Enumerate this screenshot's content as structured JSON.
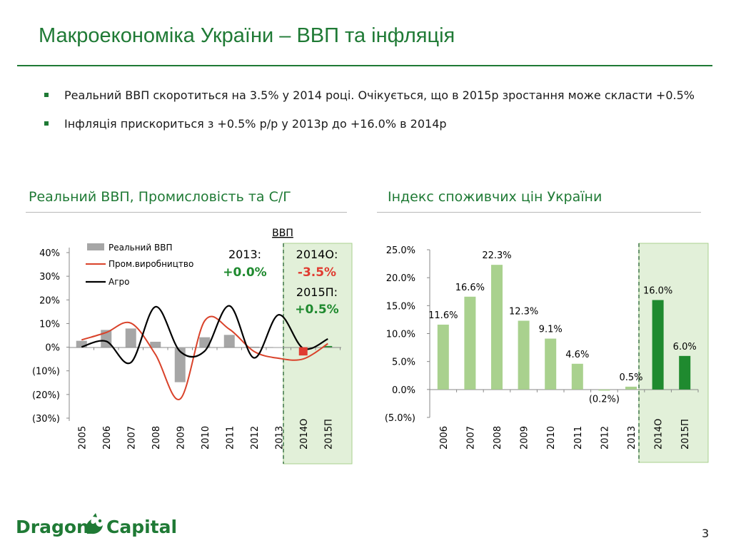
{
  "title": "Макроекономіка України – ВВП та інфляція",
  "bullets": [
    "Реальний ВВП скоротиться на 3.5% у 2014 році. Очікується, що в 2015р зростання може скласти +0.5%",
    "Інфляція прискориться з +0.5% р/р у 2013р до +16.0% в 2014р"
  ],
  "colors": {
    "brand": "#1f7a35",
    "gdp_bar": "#a6a6a6",
    "industry": "#d9422a",
    "agro": "#000000",
    "cpi_bar": "#a9d18e",
    "cpi_forecast": "#1f8a2f",
    "forecast_band": "#e2f0d9",
    "gdp_2014_marker": "#e03c31"
  },
  "left_chart": {
    "subtitle": "Реальний ВВП, Промисловість та С/Г",
    "box_title": "ВВП",
    "note_2013_label": "2013:",
    "note_2013_value": "+0.0%",
    "note_2014_label": "2014О:",
    "note_2014_value": "-3.5%",
    "note_2015_label": "2015П:",
    "note_2015_value": "+0.5%"
  },
  "right_chart": {
    "subtitle": "Індекс споживчих цін України"
  },
  "chart_data": [
    {
      "type": "bar",
      "title": "Реальний ВВП, Промисловість та С/Г",
      "categories": [
        "2005",
        "2006",
        "2007",
        "2008",
        "2009",
        "2010",
        "2011",
        "2012",
        "2013",
        "2014О",
        "2015П"
      ],
      "ylim": [
        -30,
        40
      ],
      "yticks": [
        40,
        30,
        20,
        10,
        0,
        -10,
        -20,
        -30
      ],
      "ytick_labels": [
        "40%",
        "30%",
        "20%",
        "10%",
        "0%",
        "(10%)",
        "(20%)",
        "(30%)"
      ],
      "legend_position": "top-left",
      "series": [
        {
          "name": "Реальний ВВП",
          "kind": "bar",
          "values": [
            2.7,
            7.3,
            7.9,
            2.3,
            -14.8,
            4.2,
            5.2,
            0.2,
            0.0,
            -3.5,
            0.5
          ]
        },
        {
          "name": "Пром.виробництво",
          "kind": "line",
          "values": [
            3.1,
            6.2,
            10.2,
            -3.1,
            -21.9,
            11.2,
            7.6,
            -1.8,
            -4.7,
            -5.0,
            1.5
          ]
        },
        {
          "name": "Агро",
          "kind": "line",
          "values": [
            0.1,
            2.5,
            -6.5,
            17.1,
            -1.8,
            -1.6,
            17.5,
            -4.5,
            13.7,
            -0.5,
            3.5
          ]
        }
      ],
      "forecast_categories": [
        "2014О",
        "2015П"
      ]
    },
    {
      "type": "bar",
      "title": "Індекс споживчих цін України",
      "categories": [
        "2006",
        "2007",
        "2008",
        "2009",
        "2010",
        "2011",
        "2012",
        "2013",
        "2014О",
        "2015П"
      ],
      "values": [
        11.6,
        16.6,
        22.3,
        12.3,
        9.1,
        4.6,
        -0.2,
        0.5,
        16.0,
        6.0
      ],
      "data_labels": [
        "11.6%",
        "16.6%",
        "22.3%",
        "12.3%",
        "9.1%",
        "4.6%",
        "(0.2%)",
        "0.5%",
        "16.0%",
        "6.0%"
      ],
      "ylim": [
        -5,
        25
      ],
      "yticks": [
        25,
        20,
        15,
        10,
        5,
        0,
        -5
      ],
      "ytick_labels": [
        "25.0%",
        "20.0%",
        "15.0%",
        "10.0%",
        "5.0%",
        "0.0%",
        "(5.0%)"
      ],
      "forecast_categories": [
        "2014О",
        "2015П"
      ]
    }
  ],
  "logo": {
    "text_left": "Dragon",
    "text_right": "Capital"
  },
  "page_number": "3"
}
